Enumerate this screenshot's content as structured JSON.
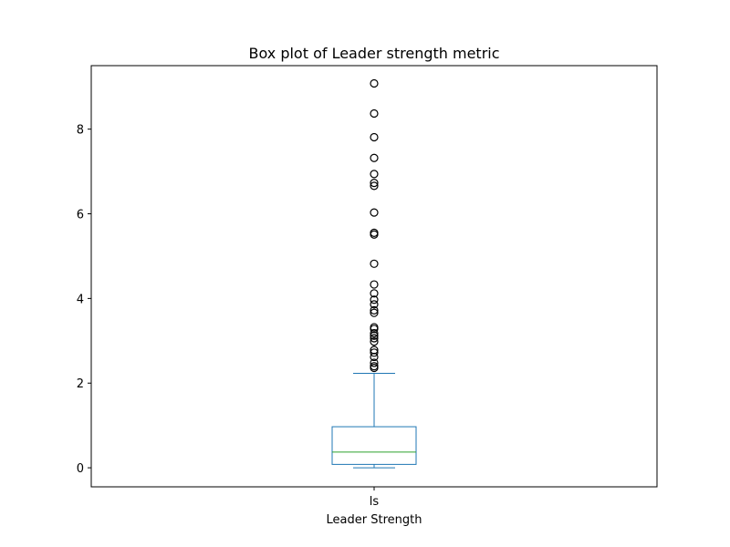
{
  "chart_data": {
    "type": "box",
    "title": "Box plot of Leader strength metric",
    "xlabel": "Leader Strength",
    "ylabel": "",
    "categories": [
      "ls"
    ],
    "ylim": [
      -0.45,
      9.5
    ],
    "yticks": [
      0,
      2,
      4,
      6,
      8
    ],
    "grid": false,
    "boxes": [
      {
        "category": "ls",
        "whisker_low": 0.0,
        "q1": 0.08,
        "median": 0.37,
        "q3": 0.97,
        "whisker_high": 2.23,
        "outliers": [
          2.36,
          2.4,
          2.48,
          2.62,
          2.72,
          2.78,
          2.98,
          3.06,
          3.12,
          3.18,
          3.28,
          3.32,
          3.66,
          3.72,
          3.86,
          3.97,
          4.12,
          4.33,
          4.82,
          5.51,
          5.55,
          6.03,
          6.66,
          6.73,
          6.94,
          7.32,
          7.81,
          8.37,
          9.08
        ]
      }
    ],
    "colors": {
      "box": "#1f77b4",
      "median": "#2ca02c",
      "outlier_edge": "#000000"
    }
  }
}
